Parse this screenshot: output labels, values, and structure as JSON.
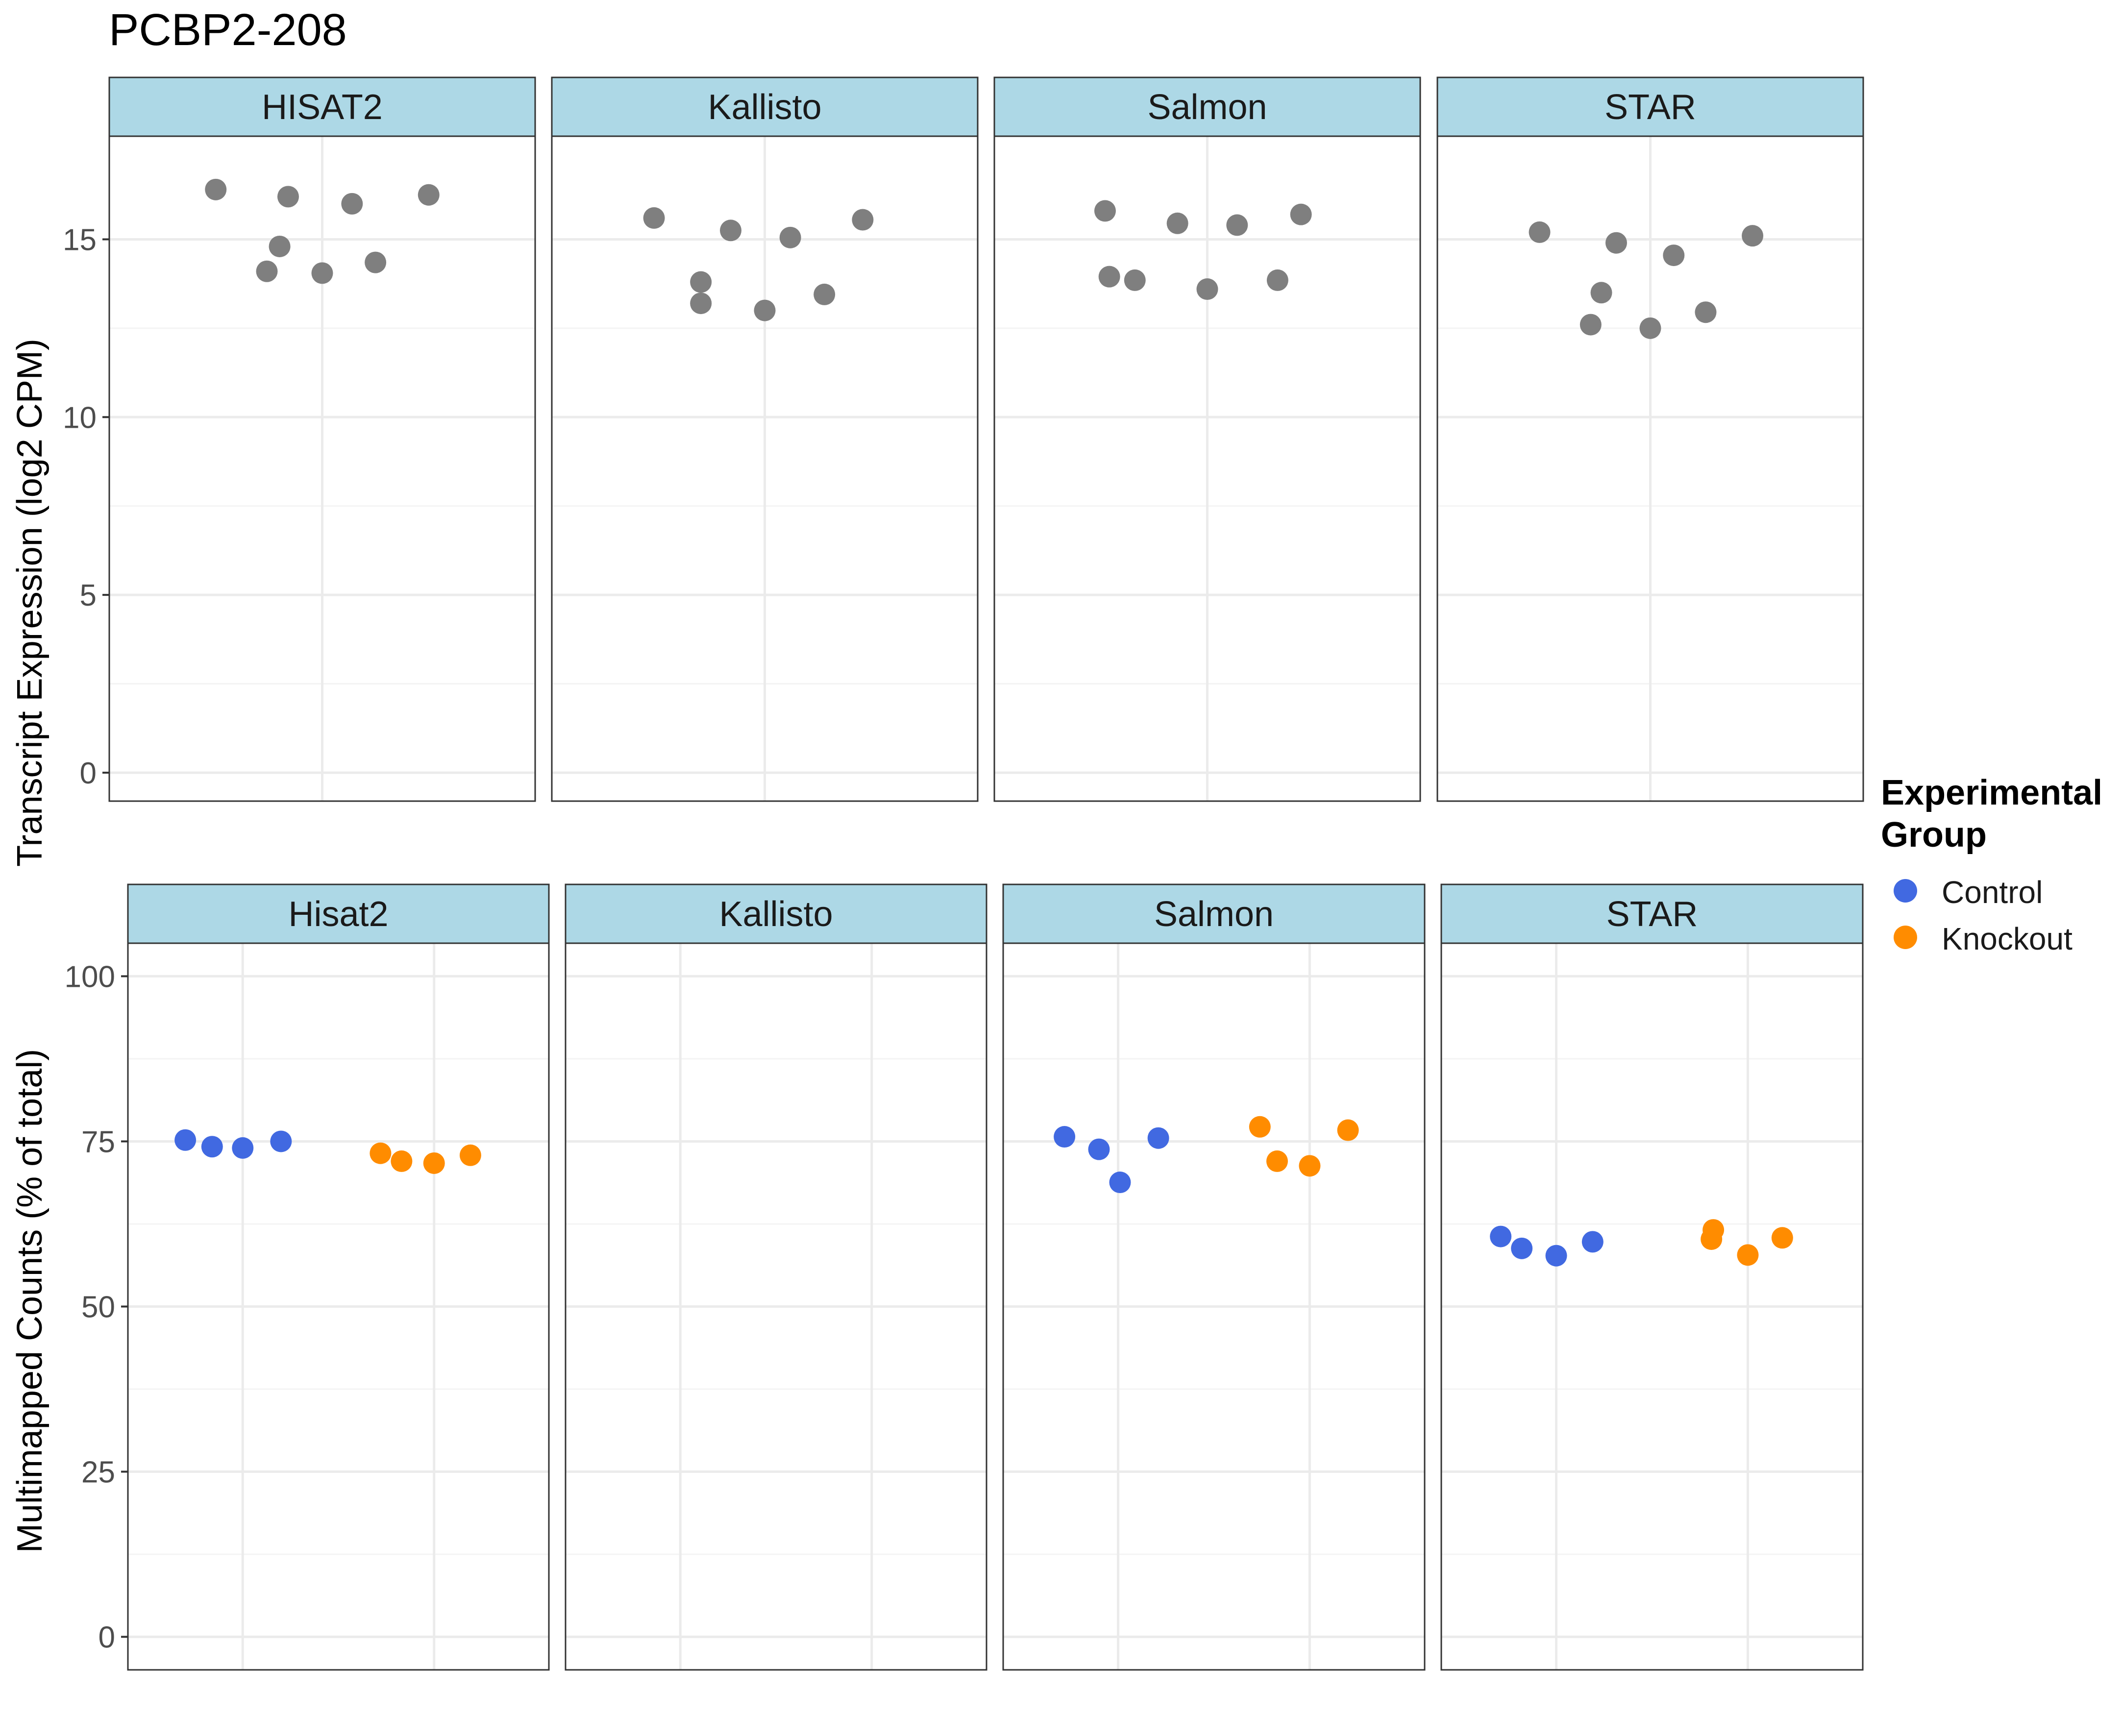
{
  "title": "PCBP2-208",
  "colors": {
    "strip_fill": "#add8e6",
    "strip_border": "#333333",
    "panel_border": "#333333",
    "grid_major": "#ebebeb",
    "grid_minor": "#f4f4f4",
    "neutral_point": "#7f7f7f",
    "Control": "#4169e1",
    "Knockout": "#ff8c00"
  },
  "legend": {
    "title_line1": "Experimental",
    "title_line2": "Group",
    "items": [
      {
        "label": "Control",
        "color": "#4169e1"
      },
      {
        "label": "Knockout",
        "color": "#ff8c00"
      }
    ]
  },
  "chart_data": [
    {
      "type": "scatter",
      "ylabel": "Transcript Expression (log2 CPM)",
      "ylim": [
        -0.8,
        17.9
      ],
      "y_ticks": [
        0,
        5,
        10,
        15
      ],
      "xlim": [
        -0.5,
        0.5
      ],
      "x_major": [
        0
      ],
      "grid": true,
      "facets": [
        {
          "label": "HISAT2",
          "points": [
            {
              "x": -0.25,
              "y": 16.4
            },
            {
              "x": -0.13,
              "y": 14.1
            },
            {
              "x": -0.1,
              "y": 14.8
            },
            {
              "x": -0.08,
              "y": 16.2
            },
            {
              "x": 0.0,
              "y": 14.05
            },
            {
              "x": 0.07,
              "y": 16.0
            },
            {
              "x": 0.125,
              "y": 14.35
            },
            {
              "x": 0.25,
              "y": 16.25
            }
          ]
        },
        {
          "label": "Kallisto",
          "points": [
            {
              "x": -0.26,
              "y": 15.6
            },
            {
              "x": -0.15,
              "y": 13.8
            },
            {
              "x": -0.15,
              "y": 13.2
            },
            {
              "x": -0.08,
              "y": 15.25
            },
            {
              "x": 0.0,
              "y": 13.0
            },
            {
              "x": 0.06,
              "y": 15.05
            },
            {
              "x": 0.14,
              "y": 13.45
            },
            {
              "x": 0.23,
              "y": 15.55
            }
          ]
        },
        {
          "label": "Salmon",
          "points": [
            {
              "x": -0.24,
              "y": 15.8
            },
            {
              "x": -0.23,
              "y": 13.95
            },
            {
              "x": -0.17,
              "y": 13.85
            },
            {
              "x": -0.07,
              "y": 15.45
            },
            {
              "x": 0.0,
              "y": 13.6
            },
            {
              "x": 0.07,
              "y": 15.4
            },
            {
              "x": 0.165,
              "y": 13.85
            },
            {
              "x": 0.22,
              "y": 15.7
            }
          ]
        },
        {
          "label": "STAR",
          "points": [
            {
              "x": -0.26,
              "y": 15.2
            },
            {
              "x": -0.14,
              "y": 12.6
            },
            {
              "x": -0.115,
              "y": 13.5
            },
            {
              "x": -0.08,
              "y": 14.9
            },
            {
              "x": 0.0,
              "y": 12.5
            },
            {
              "x": 0.055,
              "y": 14.55
            },
            {
              "x": 0.13,
              "y": 12.95
            },
            {
              "x": 0.24,
              "y": 15.1
            }
          ]
        }
      ]
    },
    {
      "type": "scatter",
      "ylabel": "Multimapped Counts (% of total)",
      "ylim": [
        -5,
        105
      ],
      "y_ticks": [
        0,
        25,
        50,
        75,
        100
      ],
      "x": [
        "Control",
        "Knockout"
      ],
      "xlim": [
        0.4,
        2.6
      ],
      "grid": true,
      "facets": [
        {
          "label": "Hisat2",
          "points": [
            {
              "group": "Control",
              "x": 0.7,
              "y": 75.2
            },
            {
              "group": "Control",
              "x": 0.84,
              "y": 74.2
            },
            {
              "group": "Control",
              "x": 1.0,
              "y": 74.0
            },
            {
              "group": "Control",
              "x": 1.2,
              "y": 75.0
            },
            {
              "group": "Knockout",
              "x": 1.72,
              "y": 73.2
            },
            {
              "group": "Knockout",
              "x": 1.83,
              "y": 72.0
            },
            {
              "group": "Knockout",
              "x": 2.0,
              "y": 71.7
            },
            {
              "group": "Knockout",
              "x": 2.19,
              "y": 72.9
            }
          ]
        },
        {
          "label": "Kallisto",
          "points": []
        },
        {
          "label": "Salmon",
          "points": [
            {
              "group": "Control",
              "x": 0.72,
              "y": 75.7
            },
            {
              "group": "Control",
              "x": 0.9,
              "y": 73.8
            },
            {
              "group": "Control",
              "x": 1.01,
              "y": 68.8
            },
            {
              "group": "Control",
              "x": 1.21,
              "y": 75.5
            },
            {
              "group": "Knockout",
              "x": 1.74,
              "y": 77.2
            },
            {
              "group": "Knockout",
              "x": 1.83,
              "y": 72.0
            },
            {
              "group": "Knockout",
              "x": 2.0,
              "y": 71.3
            },
            {
              "group": "Knockout",
              "x": 2.2,
              "y": 76.7
            }
          ]
        },
        {
          "label": "STAR",
          "points": [
            {
              "group": "Control",
              "x": 0.71,
              "y": 60.6
            },
            {
              "group": "Control",
              "x": 0.82,
              "y": 58.8
            },
            {
              "group": "Control",
              "x": 1.0,
              "y": 57.7
            },
            {
              "group": "Control",
              "x": 1.19,
              "y": 59.8
            },
            {
              "group": "Knockout",
              "x": 1.82,
              "y": 61.6
            },
            {
              "group": "Knockout",
              "x": 1.81,
              "y": 60.2
            },
            {
              "group": "Knockout",
              "x": 2.0,
              "y": 57.8
            },
            {
              "group": "Knockout",
              "x": 2.18,
              "y": 60.4
            }
          ]
        }
      ]
    }
  ]
}
